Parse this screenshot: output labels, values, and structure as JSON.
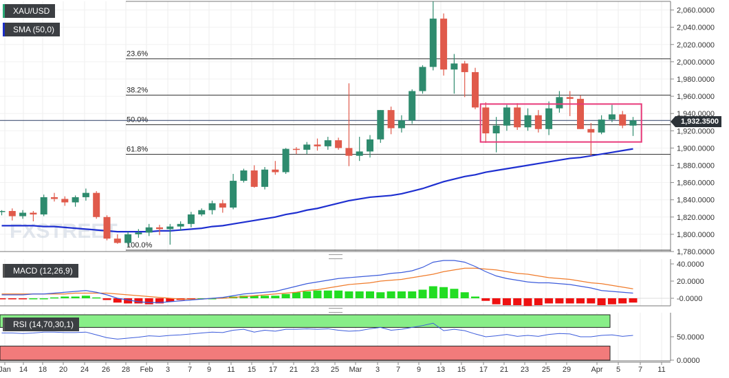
{
  "labels": {
    "symbol": "XAU/USD",
    "sma": "SMA (50,0)",
    "macd": "MACD (12,26,9)",
    "rsi": "RSI (14,70,30,1)",
    "watermark": "FXSTREET",
    "current_price": "1,932.3500"
  },
  "colors": {
    "up": "#2e8b6e",
    "down": "#e05a4b",
    "sma": "#1e2fd0",
    "macd_line": "#3b5bdb",
    "signal_line": "#f07b2a",
    "hist_pos": "#22dd22",
    "hist_neg": "#ee1111",
    "rsi_line": "#3b5bdb",
    "overbought_zone": "#88ee88",
    "oversold_zone": "#f27b7b",
    "box": "#e83a7a"
  },
  "chart_data": [
    {
      "type": "candlestick",
      "title": "XAU/USD",
      "ylim": [
        1780,
        2070
      ],
      "y_ticks": [
        "2,060.0000",
        "2,040.0000",
        "2,020.0000",
        "2,000.0000",
        "1,980.0000",
        "1,960.0000",
        "1,940.0000",
        "1,920.0000",
        "1,900.0000",
        "1,880.0000",
        "1,860.0000",
        "1,840.0000",
        "1,820.0000",
        "1,800.0000",
        "1,780.0000"
      ],
      "x_tick_labels": [
        "Jan",
        "14",
        "18",
        "20",
        "24",
        "26",
        "28",
        "Feb",
        "3",
        "7",
        "9",
        "11",
        "15",
        "17",
        "21",
        "23",
        "25",
        "Mar",
        "3",
        "7",
        "9",
        "13",
        "15",
        "17",
        "21",
        "23",
        "25",
        "29",
        "Apr",
        "5",
        "7",
        "11"
      ],
      "candles": [
        {
          "o": 1826,
          "h": 1828,
          "l": 1822,
          "c": 1827
        },
        {
          "o": 1827,
          "h": 1830,
          "l": 1816,
          "c": 1821
        },
        {
          "o": 1821,
          "h": 1828,
          "l": 1818,
          "c": 1825
        },
        {
          "o": 1825,
          "h": 1827,
          "l": 1815,
          "c": 1823
        },
        {
          "o": 1823,
          "h": 1846,
          "l": 1821,
          "c": 1843
        },
        {
          "o": 1843,
          "h": 1848,
          "l": 1838,
          "c": 1841
        },
        {
          "o": 1841,
          "h": 1844,
          "l": 1833,
          "c": 1837
        },
        {
          "o": 1837,
          "h": 1845,
          "l": 1832,
          "c": 1843
        },
        {
          "o": 1843,
          "h": 1853,
          "l": 1839,
          "c": 1848
        },
        {
          "o": 1848,
          "h": 1850,
          "l": 1818,
          "c": 1820
        },
        {
          "o": 1820,
          "h": 1822,
          "l": 1793,
          "c": 1795
        },
        {
          "o": 1795,
          "h": 1800,
          "l": 1789,
          "c": 1790
        },
        {
          "o": 1790,
          "h": 1803,
          "l": 1786,
          "c": 1800
        },
        {
          "o": 1800,
          "h": 1806,
          "l": 1796,
          "c": 1802
        },
        {
          "o": 1802,
          "h": 1812,
          "l": 1798,
          "c": 1808
        },
        {
          "o": 1808,
          "h": 1811,
          "l": 1799,
          "c": 1806
        },
        {
          "o": 1806,
          "h": 1812,
          "l": 1788,
          "c": 1809
        },
        {
          "o": 1809,
          "h": 1815,
          "l": 1804,
          "c": 1812
        },
        {
          "o": 1812,
          "h": 1826,
          "l": 1808,
          "c": 1823
        },
        {
          "o": 1823,
          "h": 1830,
          "l": 1821,
          "c": 1828
        },
        {
          "o": 1828,
          "h": 1839,
          "l": 1823,
          "c": 1836
        },
        {
          "o": 1836,
          "h": 1840,
          "l": 1825,
          "c": 1831
        },
        {
          "o": 1831,
          "h": 1870,
          "l": 1829,
          "c": 1862
        },
        {
          "o": 1862,
          "h": 1876,
          "l": 1860,
          "c": 1874
        },
        {
          "o": 1874,
          "h": 1880,
          "l": 1854,
          "c": 1855
        },
        {
          "o": 1855,
          "h": 1878,
          "l": 1852,
          "c": 1875
        },
        {
          "o": 1875,
          "h": 1885,
          "l": 1869,
          "c": 1872
        },
        {
          "o": 1872,
          "h": 1900,
          "l": 1870,
          "c": 1899
        },
        {
          "o": 1899,
          "h": 1901,
          "l": 1893,
          "c": 1898
        },
        {
          "o": 1898,
          "h": 1907,
          "l": 1893,
          "c": 1904
        },
        {
          "o": 1904,
          "h": 1911,
          "l": 1897,
          "c": 1902
        },
        {
          "o": 1902,
          "h": 1913,
          "l": 1898,
          "c": 1909
        },
        {
          "o": 1909,
          "h": 1912,
          "l": 1898,
          "c": 1900
        },
        {
          "o": 1900,
          "h": 1975,
          "l": 1879,
          "c": 1891
        },
        {
          "o": 1891,
          "h": 1913,
          "l": 1885,
          "c": 1896
        },
        {
          "o": 1896,
          "h": 1915,
          "l": 1889,
          "c": 1910
        },
        {
          "o": 1910,
          "h": 1944,
          "l": 1906,
          "c": 1944
        },
        {
          "o": 1944,
          "h": 1948,
          "l": 1916,
          "c": 1923
        },
        {
          "o": 1923,
          "h": 1938,
          "l": 1918,
          "c": 1932
        },
        {
          "o": 1932,
          "h": 1968,
          "l": 1928,
          "c": 1966
        },
        {
          "o": 1966,
          "h": 1996,
          "l": 1963,
          "c": 1994
        },
        {
          "o": 1994,
          "h": 2070,
          "l": 1990,
          "c": 2050
        },
        {
          "o": 2050,
          "h": 2056,
          "l": 1984,
          "c": 1991
        },
        {
          "o": 1991,
          "h": 2009,
          "l": 1963,
          "c": 1998
        },
        {
          "o": 1998,
          "h": 2001,
          "l": 1959,
          "c": 1988
        },
        {
          "o": 1988,
          "h": 1993,
          "l": 1945,
          "c": 1947
        },
        {
          "o": 1947,
          "h": 1953,
          "l": 1906,
          "c": 1917
        },
        {
          "o": 1917,
          "h": 1936,
          "l": 1895,
          "c": 1926
        },
        {
          "o": 1926,
          "h": 1950,
          "l": 1920,
          "c": 1947
        },
        {
          "o": 1947,
          "h": 1952,
          "l": 1921,
          "c": 1924
        },
        {
          "o": 1924,
          "h": 1946,
          "l": 1920,
          "c": 1938
        },
        {
          "o": 1938,
          "h": 1944,
          "l": 1918,
          "c": 1922
        },
        {
          "o": 1922,
          "h": 1954,
          "l": 1915,
          "c": 1946
        },
        {
          "o": 1946,
          "h": 1966,
          "l": 1941,
          "c": 1959
        },
        {
          "o": 1959,
          "h": 1966,
          "l": 1937,
          "c": 1957
        },
        {
          "o": 1957,
          "h": 1961,
          "l": 1922,
          "c": 1922
        },
        {
          "o": 1922,
          "h": 1929,
          "l": 1891,
          "c": 1918
        },
        {
          "o": 1918,
          "h": 1938,
          "l": 1916,
          "c": 1933
        },
        {
          "o": 1933,
          "h": 1950,
          "l": 1930,
          "c": 1939
        },
        {
          "o": 1939,
          "h": 1943,
          "l": 1923,
          "c": 1926
        },
        {
          "o": 1926,
          "h": 1936,
          "l": 1914,
          "c": 1932
        }
      ],
      "sma": [
        1810,
        1810,
        1810,
        1810,
        1809,
        1809,
        1808,
        1807,
        1806,
        1805,
        1804,
        1803,
        1803,
        1803,
        1803,
        1804,
        1804,
        1805,
        1806,
        1807,
        1809,
        1810,
        1812,
        1814,
        1816,
        1818,
        1820,
        1823,
        1825,
        1828,
        1830,
        1833,
        1836,
        1839,
        1841,
        1843,
        1844,
        1845,
        1847,
        1850,
        1853,
        1857,
        1861,
        1864,
        1867,
        1869,
        1872,
        1874,
        1876,
        1878,
        1880,
        1882,
        1884,
        1886,
        1888,
        1889,
        1891,
        1893,
        1895,
        1897,
        1899
      ],
      "fib_levels": [
        {
          "label": "23.6%",
          "value": 2003.4
        },
        {
          "label": "38.2%",
          "value": 1961.3
        },
        {
          "label": "50.0%",
          "value": 1927.0
        },
        {
          "label": "61.8%",
          "value": 1892.7
        },
        {
          "label": "100.0%",
          "value": 1781.6
        }
      ],
      "highlight_box": {
        "y_range": [
          1907,
          1951
        ],
        "x_index_range": [
          45.5,
          60.8
        ]
      }
    },
    {
      "type": "line",
      "title": "MACD (12,26,9)",
      "ylim": [
        -10,
        46
      ],
      "y_ticks": [
        "40.0000",
        "20.0000",
        "-0.0000"
      ],
      "macd": [
        4,
        4,
        4,
        5,
        5,
        6,
        7,
        8,
        9,
        7,
        4,
        0,
        -2,
        -4,
        -5,
        -5,
        -4,
        -3,
        -2,
        -1,
        0,
        1,
        3,
        5,
        6,
        7,
        8,
        11,
        14,
        17,
        19,
        21,
        23,
        24,
        25,
        26,
        27,
        29,
        30,
        32,
        36,
        42,
        44,
        44,
        42,
        37,
        31,
        26,
        23,
        21,
        19,
        18,
        18,
        17,
        16,
        14,
        12,
        9,
        8,
        7,
        6
      ],
      "signal": [
        5,
        5,
        5,
        5,
        5,
        5,
        5,
        6,
        6,
        6,
        6,
        5,
        4,
        3,
        2,
        1,
        0,
        -1,
        -1,
        -1,
        0,
        0,
        1,
        2,
        3,
        4,
        5,
        6,
        7,
        9,
        10,
        12,
        14,
        16,
        17,
        18,
        20,
        21,
        22,
        24,
        26,
        28,
        31,
        33,
        35,
        35,
        34,
        33,
        31,
        29,
        28,
        26,
        24,
        23,
        22,
        20,
        18,
        17,
        15,
        13,
        11
      ],
      "histogram": [
        -1,
        -1,
        -1,
        0,
        0,
        1,
        2,
        2,
        3,
        1,
        -2,
        -5,
        -6,
        -6,
        -7,
        -6,
        -4,
        -2,
        -1,
        0,
        0,
        1,
        2,
        3,
        3,
        3,
        3,
        5,
        7,
        8,
        9,
        9,
        9,
        8,
        8,
        8,
        7,
        8,
        8,
        8,
        10,
        14,
        13,
        11,
        7,
        2,
        -3,
        -7,
        -8,
        -8,
        -9,
        -8,
        -6,
        -6,
        -6,
        -6,
        -6,
        -8,
        -7,
        -6,
        -5
      ]
    },
    {
      "type": "line",
      "title": "RSI (14,70,30,1)",
      "ylim": [
        0,
        100
      ],
      "y_ticks": [
        "50.0000",
        "0.0000"
      ],
      "overbought": 70,
      "oversold": 30,
      "rsi": [
        58,
        58,
        57,
        58,
        60,
        60,
        59,
        59,
        60,
        54,
        48,
        45,
        47,
        49,
        52,
        51,
        53,
        54,
        56,
        58,
        60,
        59,
        64,
        66,
        60,
        64,
        62,
        66,
        66,
        67,
        66,
        67,
        64,
        62,
        63,
        67,
        70,
        64,
        66,
        70,
        74,
        79,
        63,
        66,
        63,
        56,
        50,
        52,
        55,
        51,
        53,
        51,
        55,
        57,
        56,
        50,
        50,
        53,
        54,
        51,
        53
      ]
    }
  ]
}
